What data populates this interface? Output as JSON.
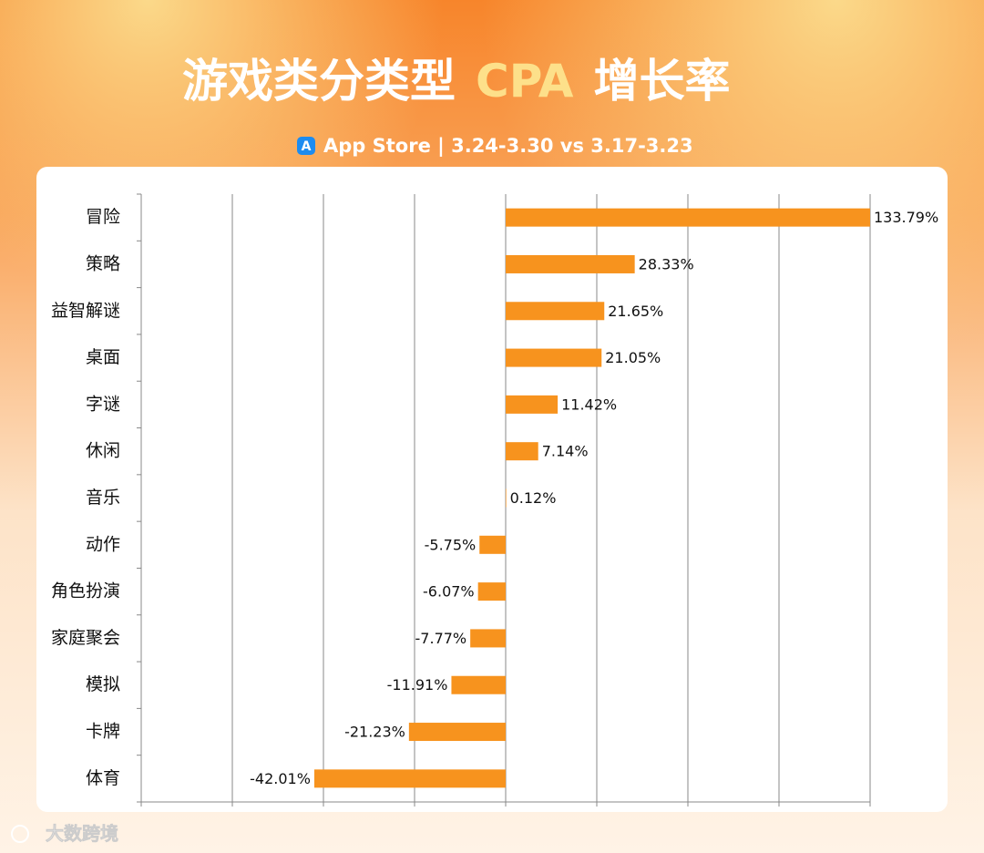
{
  "header": {
    "title": [
      "游戏类分类型",
      "CPA",
      "增长率"
    ],
    "subtitle": "App Store | 3.24-3.30 vs 3.17-3.23"
  },
  "watermark": "大数跨境",
  "chart_data": {
    "type": "hbar",
    "categories": [
      "冒险",
      "策略",
      "益智解谜",
      "桌面",
      "字谜",
      "休闲",
      "音乐",
      "动作",
      "角色扮演",
      "家庭聚会",
      "模拟",
      "卡牌",
      "体育"
    ],
    "values": [
      133.79,
      28.33,
      21.65,
      21.05,
      11.42,
      7.14,
      0.12,
      -5.75,
      -6.07,
      -7.77,
      -11.91,
      -21.23,
      -42.01
    ],
    "value_labels": [
      "133.79%",
      "28.33%",
      "21.65%",
      "21.05%",
      "11.42%",
      "7.14%",
      "0.12%",
      "-5.75%",
      "-6.07%",
      "-7.77%",
      "-11.91%",
      "-21.23%",
      "-42.01%"
    ],
    "color": "#f7931e",
    "xlim": [
      -80,
      80
    ],
    "xticks": [
      -80,
      -60,
      -40,
      -20,
      0,
      20,
      40,
      60,
      80
    ],
    "grid": true
  }
}
